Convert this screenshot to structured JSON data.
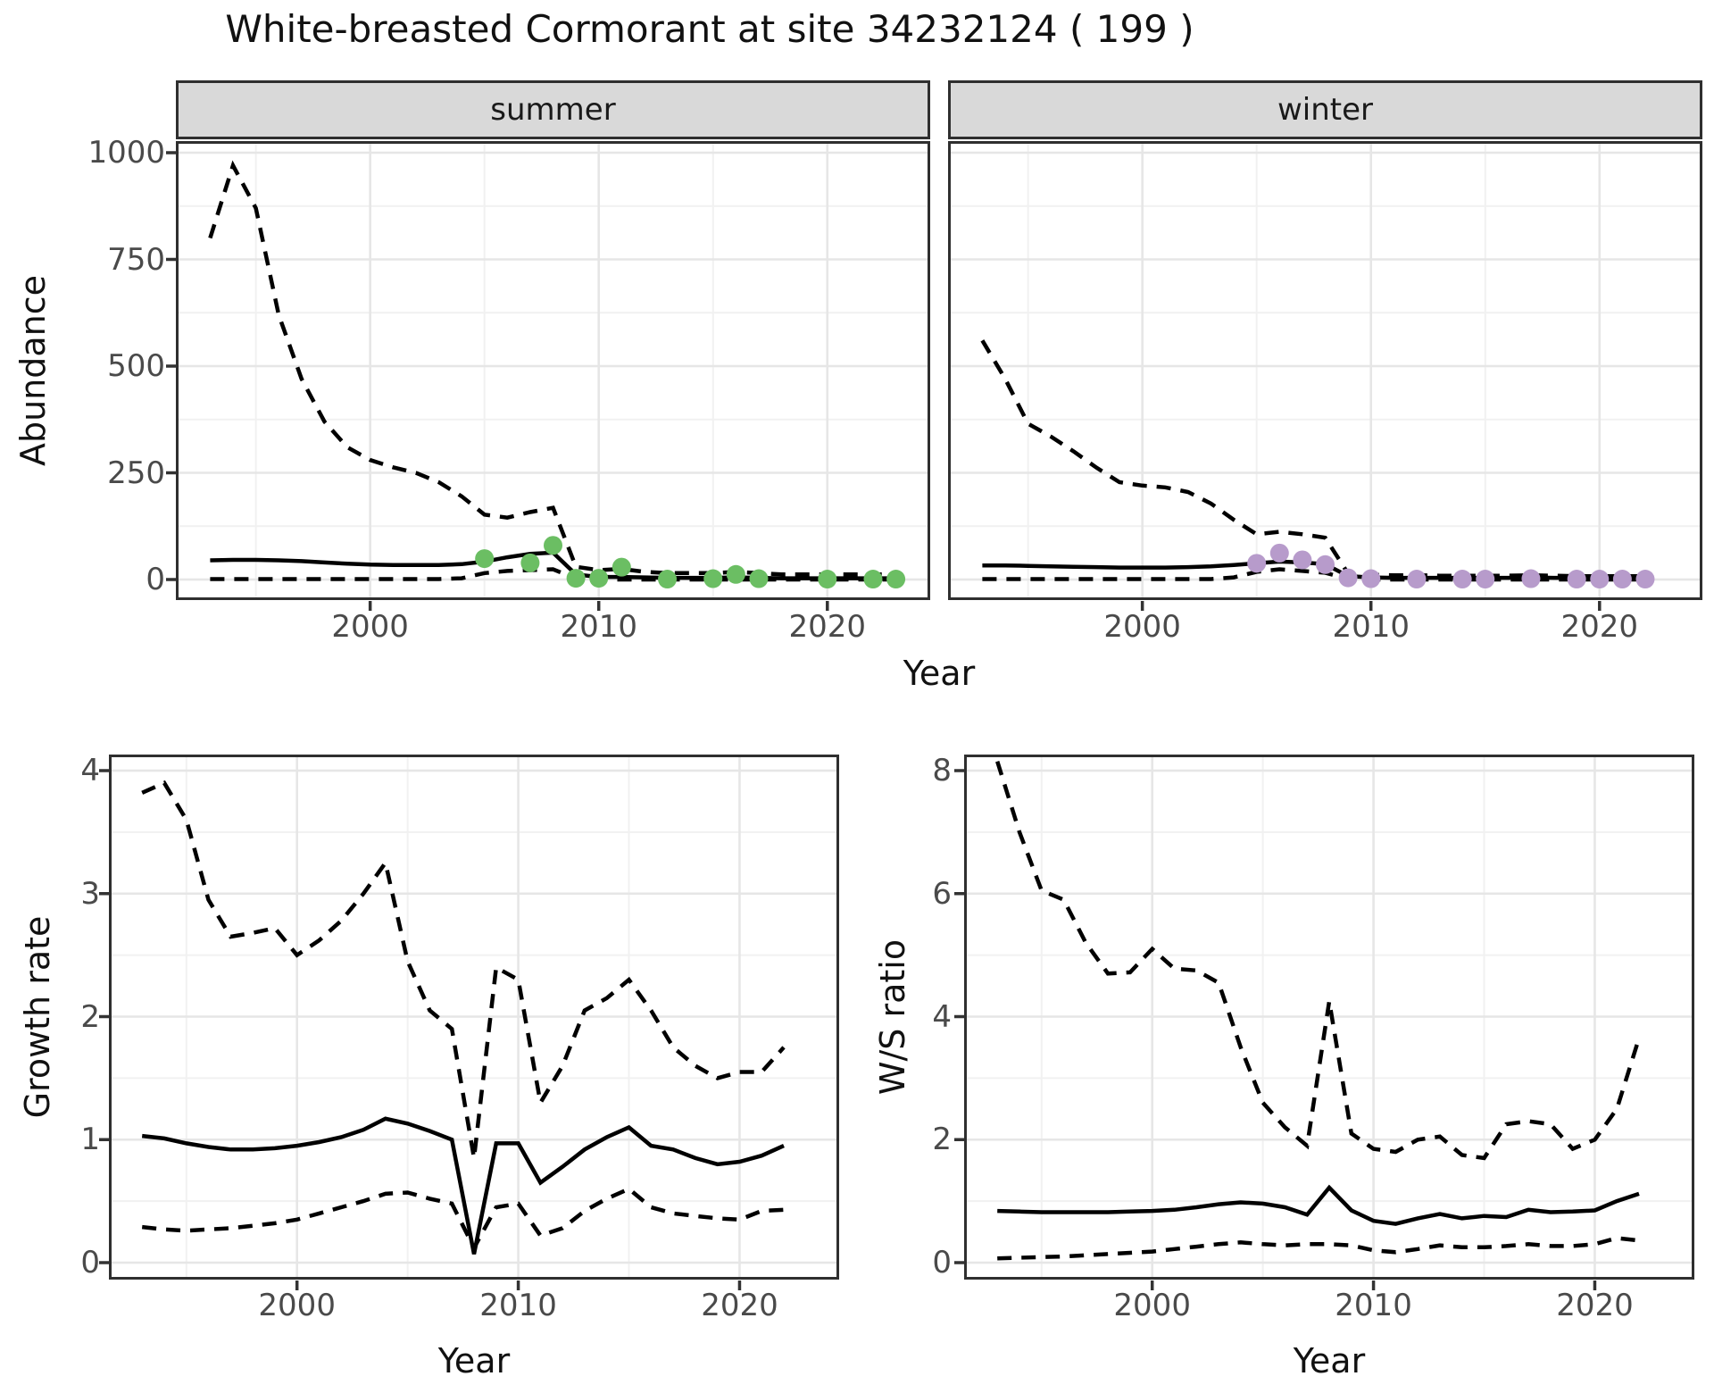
{
  "title": "White-breasted Cormorant at site 34232124 ( 199 )",
  "colors": {
    "summer_point": "#6BBE63",
    "winter_point": "#B79BCB",
    "line": "#000000",
    "grid_major": "#E6E6E6",
    "grid_minor": "#F1F1F1",
    "panel_border": "#2f2f2f",
    "strip_bg": "#D9D9D9",
    "tick_text": "#4a4a4a"
  },
  "top_chart": {
    "y_axis_title": "Abundance",
    "x_axis_title": "Year",
    "y_tick_labels": [
      "0",
      "250",
      "500",
      "750",
      "1000"
    ],
    "x_tick_labels": [
      "2000",
      "2010",
      "2020"
    ],
    "facets": [
      {
        "label": "summer"
      },
      {
        "label": "winter"
      }
    ]
  },
  "bottom_left": {
    "y_axis_title": "Growth rate",
    "x_axis_title": "Year",
    "y_tick_labels": [
      "0",
      "1",
      "2",
      "3",
      "4"
    ],
    "x_tick_labels": [
      "2000",
      "2010",
      "2020"
    ]
  },
  "bottom_right": {
    "y_axis_title": "W/S ratio",
    "x_axis_title": "Year",
    "y_tick_labels": [
      "0",
      "2",
      "4",
      "6",
      "8"
    ],
    "x_tick_labels": [
      "2000",
      "2010",
      "2020"
    ]
  },
  "chart_data": [
    {
      "type": "line",
      "facet": "summer",
      "title": "Abundance - summer",
      "xlim": [
        1991.5,
        2024.5
      ],
      "ylim": [
        0,
        1000
      ],
      "x_major": [
        2000,
        2010,
        2020
      ],
      "x_minor": [
        1995,
        2005,
        2015
      ],
      "y_major": [
        0,
        250,
        500,
        750,
        1000
      ],
      "y_minor": [
        125,
        375,
        625,
        875
      ],
      "x": [
        1993,
        1994,
        1995,
        1996,
        1997,
        1998,
        1999,
        2000,
        2001,
        2002,
        2003,
        2004,
        2005,
        2006,
        2007,
        2008,
        2009,
        2010,
        2011,
        2012,
        2013,
        2014,
        2015,
        2016,
        2017,
        2018,
        2019,
        2020,
        2021,
        2022,
        2023
      ],
      "series": [
        {
          "name": "mean",
          "style": "solid",
          "values": [
            45,
            46,
            46,
            45,
            43,
            40,
            37,
            35,
            34,
            34,
            34,
            36,
            42,
            52,
            60,
            63,
            12,
            6,
            6,
            5,
            4,
            4,
            4,
            5,
            4,
            3,
            3,
            3,
            3,
            3,
            3
          ]
        },
        {
          "name": "upper_ci",
          "style": "dashed",
          "values": [
            800,
            970,
            870,
            620,
            470,
            370,
            310,
            280,
            263,
            250,
            228,
            195,
            152,
            145,
            158,
            168,
            30,
            22,
            25,
            18,
            15,
            15,
            15,
            18,
            15,
            12,
            12,
            12,
            12,
            12,
            12
          ]
        },
        {
          "name": "lower_ci",
          "style": "dashed",
          "values": [
            1,
            1,
            1,
            1,
            1,
            1,
            1,
            1,
            1,
            1,
            1,
            3,
            15,
            20,
            22,
            24,
            2,
            0,
            0,
            0,
            0,
            0,
            0,
            0,
            0,
            0,
            0,
            0,
            0,
            0,
            0
          ]
        }
      ],
      "points": {
        "name": "observed_counts",
        "color_key": "summer_point",
        "data": [
          [
            2005,
            49
          ],
          [
            2007,
            39
          ],
          [
            2008,
            80
          ],
          [
            2009,
            3
          ],
          [
            2010,
            3
          ],
          [
            2011,
            29
          ],
          [
            2013,
            1
          ],
          [
            2015,
            2
          ],
          [
            2016,
            12
          ],
          [
            2017,
            2
          ],
          [
            2020,
            1
          ],
          [
            2022,
            1
          ],
          [
            2023,
            1
          ]
        ]
      }
    },
    {
      "type": "line",
      "facet": "winter",
      "title": "Abundance - winter",
      "xlim": [
        1991.5,
        2024.5
      ],
      "ylim": [
        0,
        1000
      ],
      "x_major": [
        2000,
        2010,
        2020
      ],
      "x_minor": [
        1995,
        2005,
        2015
      ],
      "y_major": [
        0,
        250,
        500,
        750,
        1000
      ],
      "y_minor": [
        125,
        375,
        625,
        875
      ],
      "x": [
        1993,
        1994,
        1995,
        1996,
        1997,
        1998,
        1999,
        2000,
        2001,
        2002,
        2003,
        2004,
        2005,
        2006,
        2007,
        2008,
        2009,
        2010,
        2011,
        2012,
        2013,
        2014,
        2015,
        2016,
        2017,
        2018,
        2019,
        2020,
        2021,
        2022
      ],
      "series": [
        {
          "name": "mean",
          "style": "solid",
          "values": [
            33,
            33,
            32,
            31,
            30,
            29,
            28,
            28,
            28,
            29,
            31,
            34,
            38,
            42,
            40,
            36,
            8,
            5,
            4,
            4,
            4,
            4,
            4,
            4,
            5,
            4,
            4,
            3,
            3,
            3
          ]
        },
        {
          "name": "upper_ci",
          "style": "dashed",
          "values": [
            560,
            470,
            365,
            335,
            300,
            262,
            228,
            220,
            216,
            205,
            178,
            140,
            106,
            112,
            106,
            98,
            14,
            11,
            10,
            10,
            9,
            9,
            9,
            9,
            10,
            9,
            8,
            8,
            8,
            8
          ]
        },
        {
          "name": "lower_ci",
          "style": "dashed",
          "values": [
            1,
            1,
            1,
            1,
            1,
            1,
            1,
            1,
            1,
            1,
            1,
            5,
            18,
            24,
            20,
            16,
            1,
            0,
            0,
            0,
            0,
            0,
            0,
            0,
            0,
            0,
            0,
            0,
            0,
            0
          ]
        }
      ],
      "points": {
        "name": "observed_counts",
        "color_key": "winter_point",
        "data": [
          [
            2005,
            38
          ],
          [
            2006,
            62
          ],
          [
            2007,
            46
          ],
          [
            2008,
            35
          ],
          [
            2009,
            4
          ],
          [
            2010,
            2
          ],
          [
            2012,
            1
          ],
          [
            2014,
            1
          ],
          [
            2015,
            1
          ],
          [
            2017,
            2
          ],
          [
            2019,
            1
          ],
          [
            2020,
            1
          ],
          [
            2021,
            1
          ],
          [
            2022,
            1
          ]
        ]
      }
    },
    {
      "type": "line",
      "facet": null,
      "title": "Growth rate",
      "xlim": [
        1991.5,
        2024.5
      ],
      "ylim": [
        0,
        4
      ],
      "x_major": [
        2000,
        2010,
        2020
      ],
      "x_minor": [
        1995,
        2005,
        2015
      ],
      "y_major": [
        0,
        1,
        2,
        3,
        4
      ],
      "y_minor": [
        0.5,
        1.5,
        2.5,
        3.5
      ],
      "x": [
        1993,
        1994,
        1995,
        1996,
        1997,
        1998,
        1999,
        2000,
        2001,
        2002,
        2003,
        2004,
        2005,
        2006,
        2007,
        2008,
        2009,
        2010,
        2011,
        2012,
        2013,
        2014,
        2015,
        2016,
        2017,
        2018,
        2019,
        2020,
        2021,
        2022
      ],
      "series": [
        {
          "name": "mean",
          "style": "solid",
          "values": [
            1.03,
            1.01,
            0.97,
            0.94,
            0.92,
            0.92,
            0.93,
            0.95,
            0.98,
            1.02,
            1.08,
            1.17,
            1.13,
            1.07,
            1.0,
            0.07,
            0.97,
            0.97,
            0.65,
            0.78,
            0.92,
            1.02,
            1.1,
            0.95,
            0.92,
            0.85,
            0.8,
            0.82,
            0.87,
            0.95
          ]
        },
        {
          "name": "upper_ci",
          "style": "dashed",
          "values": [
            3.82,
            3.9,
            3.6,
            2.95,
            2.65,
            2.68,
            2.72,
            2.5,
            2.62,
            2.78,
            3.0,
            3.25,
            2.45,
            2.05,
            1.9,
            0.85,
            2.4,
            2.3,
            1.3,
            1.6,
            2.05,
            2.15,
            2.3,
            2.05,
            1.75,
            1.6,
            1.5,
            1.55,
            1.55,
            1.75
          ]
        },
        {
          "name": "lower_ci",
          "style": "dashed",
          "values": [
            0.29,
            0.27,
            0.26,
            0.27,
            0.28,
            0.3,
            0.32,
            0.35,
            0.4,
            0.45,
            0.5,
            0.56,
            0.57,
            0.52,
            0.48,
            0.12,
            0.45,
            0.48,
            0.22,
            0.28,
            0.42,
            0.52,
            0.6,
            0.45,
            0.4,
            0.38,
            0.36,
            0.35,
            0.42,
            0.43
          ]
        }
      ],
      "points": null
    },
    {
      "type": "line",
      "facet": null,
      "title": "W/S ratio",
      "xlim": [
        1991.5,
        2024.5
      ],
      "ylim": [
        0,
        8
      ],
      "x_major": [
        2000,
        2010,
        2020
      ],
      "x_minor": [
        1995,
        2005,
        2015
      ],
      "y_major": [
        0,
        2,
        4,
        6,
        8
      ],
      "y_minor": [
        1,
        3,
        5,
        7
      ],
      "x": [
        1993,
        1994,
        1995,
        1996,
        1997,
        1998,
        1999,
        2000,
        2001,
        2002,
        2003,
        2004,
        2005,
        2006,
        2007,
        2008,
        2009,
        2010,
        2011,
        2012,
        2013,
        2014,
        2015,
        2016,
        2017,
        2018,
        2019,
        2020,
        2021,
        2022
      ],
      "series": [
        {
          "name": "mean",
          "style": "solid",
          "values": [
            0.84,
            0.83,
            0.82,
            0.82,
            0.82,
            0.82,
            0.83,
            0.84,
            0.86,
            0.9,
            0.95,
            0.98,
            0.96,
            0.9,
            0.78,
            1.22,
            0.85,
            0.68,
            0.63,
            0.72,
            0.79,
            0.72,
            0.76,
            0.74,
            0.86,
            0.82,
            0.83,
            0.85,
            1.0,
            1.12
          ]
        },
        {
          "name": "upper_ci",
          "style": "dashed",
          "values": [
            8.15,
            7.0,
            6.05,
            5.9,
            5.2,
            4.7,
            4.72,
            5.1,
            4.78,
            4.75,
            4.55,
            3.5,
            2.6,
            2.2,
            1.9,
            4.25,
            2.1,
            1.85,
            1.8,
            2.0,
            2.05,
            1.75,
            1.7,
            2.25,
            2.3,
            2.25,
            1.85,
            2.0,
            2.5,
            3.65
          ]
        },
        {
          "name": "lower_ci",
          "style": "dashed",
          "values": [
            0.07,
            0.08,
            0.09,
            0.1,
            0.12,
            0.14,
            0.16,
            0.18,
            0.22,
            0.26,
            0.3,
            0.33,
            0.3,
            0.28,
            0.3,
            0.3,
            0.28,
            0.2,
            0.17,
            0.22,
            0.28,
            0.25,
            0.25,
            0.27,
            0.3,
            0.27,
            0.27,
            0.3,
            0.4,
            0.36
          ]
        }
      ],
      "points": null
    }
  ]
}
